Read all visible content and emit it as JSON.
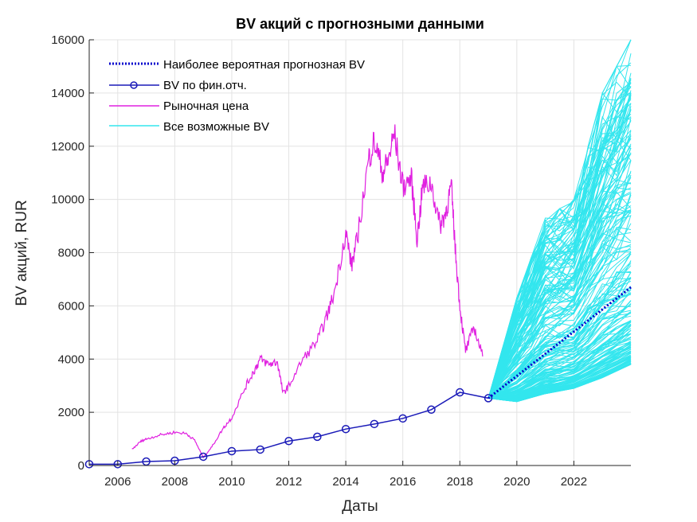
{
  "chart_data": {
    "type": "line",
    "title": "BV акций с прогнозными данными",
    "xlabel": "Даты",
    "ylabel": "BV акций, RUR",
    "xlim": [
      2005,
      2024
    ],
    "ylim": [
      0,
      16000
    ],
    "grid": true,
    "legend_position": "top-left",
    "xticks": [
      "2006",
      "2008",
      "2010",
      "2012",
      "2014",
      "2016",
      "2018",
      "2020",
      "2022"
    ],
    "yticks": [
      "0",
      "2000",
      "4000",
      "6000",
      "8000",
      "10000",
      "12000",
      "14000",
      "16000"
    ],
    "series": [
      {
        "name": "Наиболее вероятная прогнозная BV",
        "style": "dotted",
        "color": "#0000cc",
        "x": [
          2019,
          2024
        ],
        "y": [
          2530,
          6700
        ]
      },
      {
        "name": "BV по фин.отч.",
        "style": "line-hexagram",
        "color": "#1a1ab8",
        "x": [
          2005,
          2006,
          2007,
          2008,
          2009,
          2010,
          2011,
          2012,
          2013,
          2014,
          2015,
          2016,
          2017,
          2018,
          2019
        ],
        "y": [
          50,
          50,
          150,
          180,
          330,
          540,
          600,
          920,
          1080,
          1370,
          1560,
          1770,
          2100,
          2750,
          2530
        ]
      },
      {
        "name": "Рыночная цена",
        "style": "line",
        "color": "#e020e0",
        "x": [
          2006.5,
          2006.8,
          2007,
          2007.5,
          2008,
          2008.4,
          2008.7,
          2009,
          2009.3,
          2009.7,
          2010,
          2010.5,
          2010.8,
          2011,
          2011.3,
          2011.6,
          2011.8,
          2012,
          2012.5,
          2013,
          2013.3,
          2013.6,
          2014,
          2014.2,
          2014.4,
          2014.8,
          2015,
          2015.3,
          2015.5,
          2015.7,
          2016,
          2016.3,
          2016.5,
          2016.7,
          2017,
          2017.3,
          2017.5,
          2017.7,
          2017.85,
          2018,
          2018.2,
          2018.5,
          2018.8
        ],
        "y": [
          600,
          900,
          1000,
          1150,
          1250,
          1200,
          950,
          300,
          700,
          1400,
          1800,
          3000,
          3600,
          4000,
          3800,
          3900,
          2700,
          3000,
          4000,
          4700,
          5500,
          6500,
          8800,
          7500,
          8500,
          11500,
          12200,
          11000,
          11500,
          12500,
          10500,
          10800,
          8500,
          10500,
          10600,
          9000,
          9500,
          10500,
          8000,
          6000,
          4300,
          5200,
          4100
        ]
      },
      {
        "name": "Все возможные BV",
        "style": "many-lines",
        "color": "#33e6ee",
        "x": [
          2019,
          2020,
          2021,
          2022,
          2023,
          2024
        ],
        "lower": [
          2530,
          2400,
          2700,
          2900,
          3300,
          3800
        ],
        "upper": [
          2530,
          6300,
          9300,
          10000,
          14000,
          16000
        ]
      }
    ]
  }
}
